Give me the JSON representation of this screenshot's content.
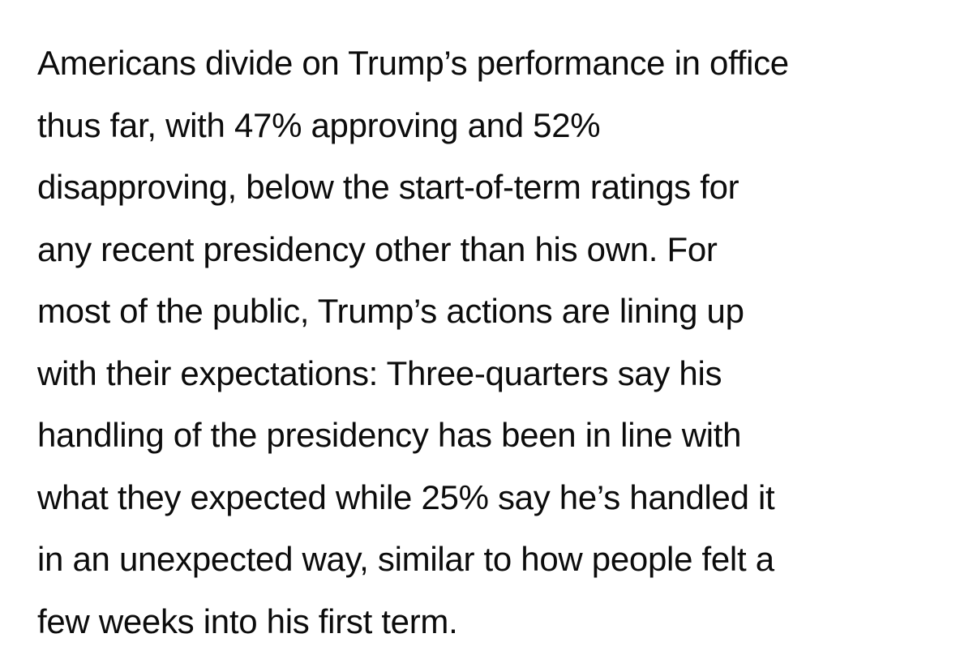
{
  "article": {
    "paragraph_lines": [
      "Americans divide on Trump’s performance in office",
      "thus far, with 47% approving and 52%",
      "disapproving, below the start-of-term ratings for",
      "any recent presidency other than his own. For",
      "most of the public, Trump’s actions are lining up",
      "with their expectations: Three-quarters say his",
      "handling of the presidency has been in line with",
      "what they expected while 25% say he’s handled it",
      "in an unexpected way, similar to how people felt a",
      "few weeks into his first term."
    ],
    "text_color": "#0c0c0c",
    "background_color": "#ffffff"
  }
}
